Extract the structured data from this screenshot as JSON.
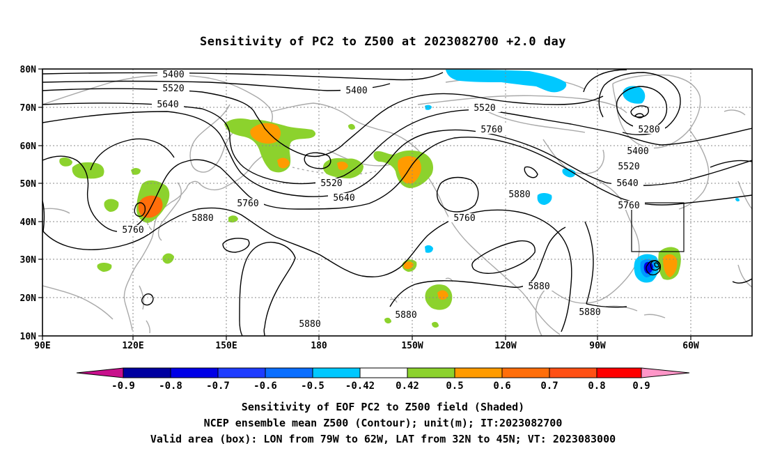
{
  "title": "Sensitivity of PC2 to Z500 at 2023082700 +2.0 day",
  "captions": {
    "line1": "Sensitivity of EOF PC2 to Z500 field (Shaded)",
    "line2": "NCEP ensemble mean Z500 (Contour); unit(m); IT:2023082700",
    "line3": "Valid area (box): LON from 79W to 62W, LAT from 32N to 45N; VT: 2023083000"
  },
  "axes": {
    "lon_ticks": [
      "90E",
      "120E",
      "150E",
      "180",
      "150W",
      "120W",
      "90W",
      "60W"
    ],
    "lat_ticks": [
      "10N",
      "20N",
      "30N",
      "40N",
      "50N",
      "60N",
      "70N",
      "80N"
    ]
  },
  "contour_labels": [
    "5400",
    "5520",
    "5640",
    "5400",
    "5520",
    "5760",
    "5280",
    "5400",
    "5520",
    "5640",
    "5760",
    "5520",
    "5640",
    "5760",
    "5880",
    "5760",
    "5880",
    "5760",
    "5880",
    "5880",
    "5880",
    "5880"
  ],
  "colorbar": {
    "labels": [
      "-0.9",
      "-0.8",
      "-0.7",
      "-0.6",
      "-0.5",
      "-0.42",
      "0.42",
      "0.5",
      "0.6",
      "0.7",
      "0.8",
      "0.9"
    ],
    "colors": {
      "neg_tip": "#c8108c",
      "n09": "#0000a0",
      "n08": "#0000e6",
      "n07": "#1e3cff",
      "n06": "#0a6eff",
      "n05": "#0096ff",
      "n042": "#00c8ff",
      "neutral": "#ffffff",
      "p042": "#8cd22d",
      "p05": "#ff9b00",
      "p06": "#ff6e0a",
      "p07": "#ff5014",
      "p08": "#ff2d14",
      "p09": "#ff0000",
      "pos_tip": "#ff96c8"
    }
  },
  "valid_box": {
    "lon_range": [
      "79W",
      "62W"
    ],
    "lat_range": [
      "32N",
      "45N"
    ]
  }
}
